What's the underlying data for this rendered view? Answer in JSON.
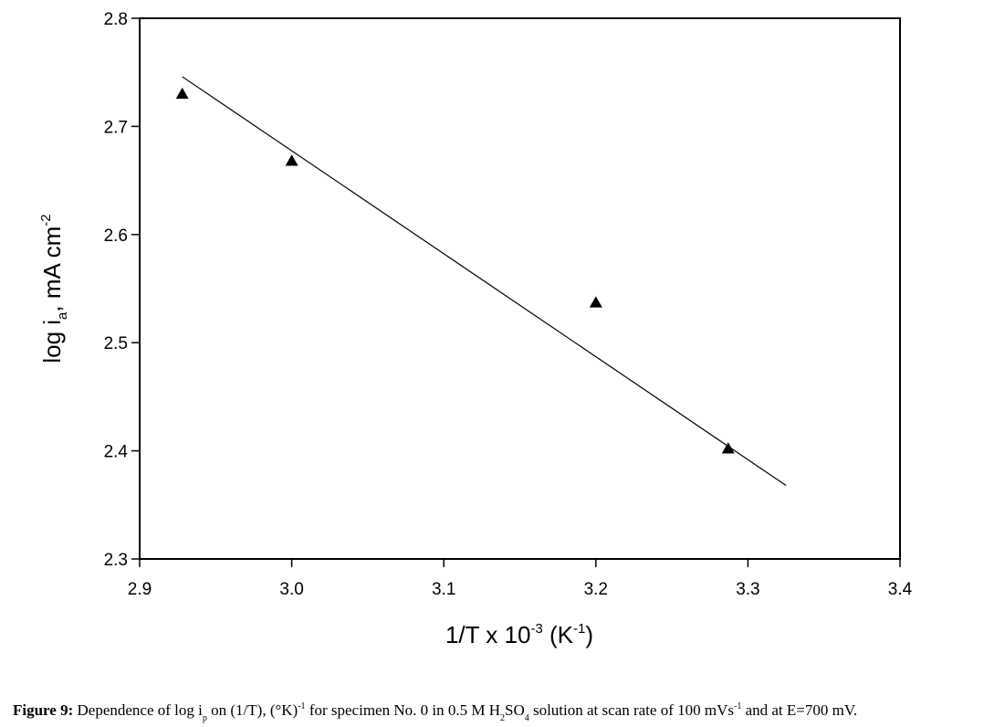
{
  "chart_data": {
    "type": "scatter",
    "x_label": {
      "main": "1/T x 10",
      "exp": "-3",
      "unit_open": " (K",
      "unit_exp": "-1",
      "unit_close": ")"
    },
    "y_label": {
      "main": "log i",
      "sub": "a",
      "unit": ", mA cm",
      "unit_exp": "-2"
    },
    "xlim": [
      2.9,
      3.4
    ],
    "ylim": [
      2.3,
      2.8
    ],
    "x_ticks": [
      "2.9",
      "3.0",
      "3.1",
      "3.2",
      "3.3",
      "3.4"
    ],
    "y_ticks": [
      "2.3",
      "2.4",
      "2.5",
      "2.6",
      "2.7",
      "2.8"
    ],
    "grid": false,
    "series": [
      {
        "marker": "triangle",
        "color": "#000000",
        "points": [
          {
            "x": 2.928,
            "y": 2.73
          },
          {
            "x": 3.0,
            "y": 2.668
          },
          {
            "x": 3.2,
            "y": 2.537
          },
          {
            "x": 3.287,
            "y": 2.402
          }
        ]
      }
    ],
    "fit_line": {
      "x": [
        2.928,
        3.325
      ],
      "y": [
        2.746,
        2.368
      ]
    }
  },
  "caption": {
    "label": "Figure 9:",
    "text_1": " Dependence of log i",
    "sub_p": "p",
    "text_2": " on (1/T), (°K)",
    "sup_1": "-1",
    "text_3": " for specimen No. 0 in 0.5 M H",
    "sub_2": "2",
    "text_4": "SO",
    "sub_4": "4",
    "text_5": " solution at scan rate of 100 mVs",
    "sup_2": "-1",
    "text_6": " and at E=700 mV."
  }
}
